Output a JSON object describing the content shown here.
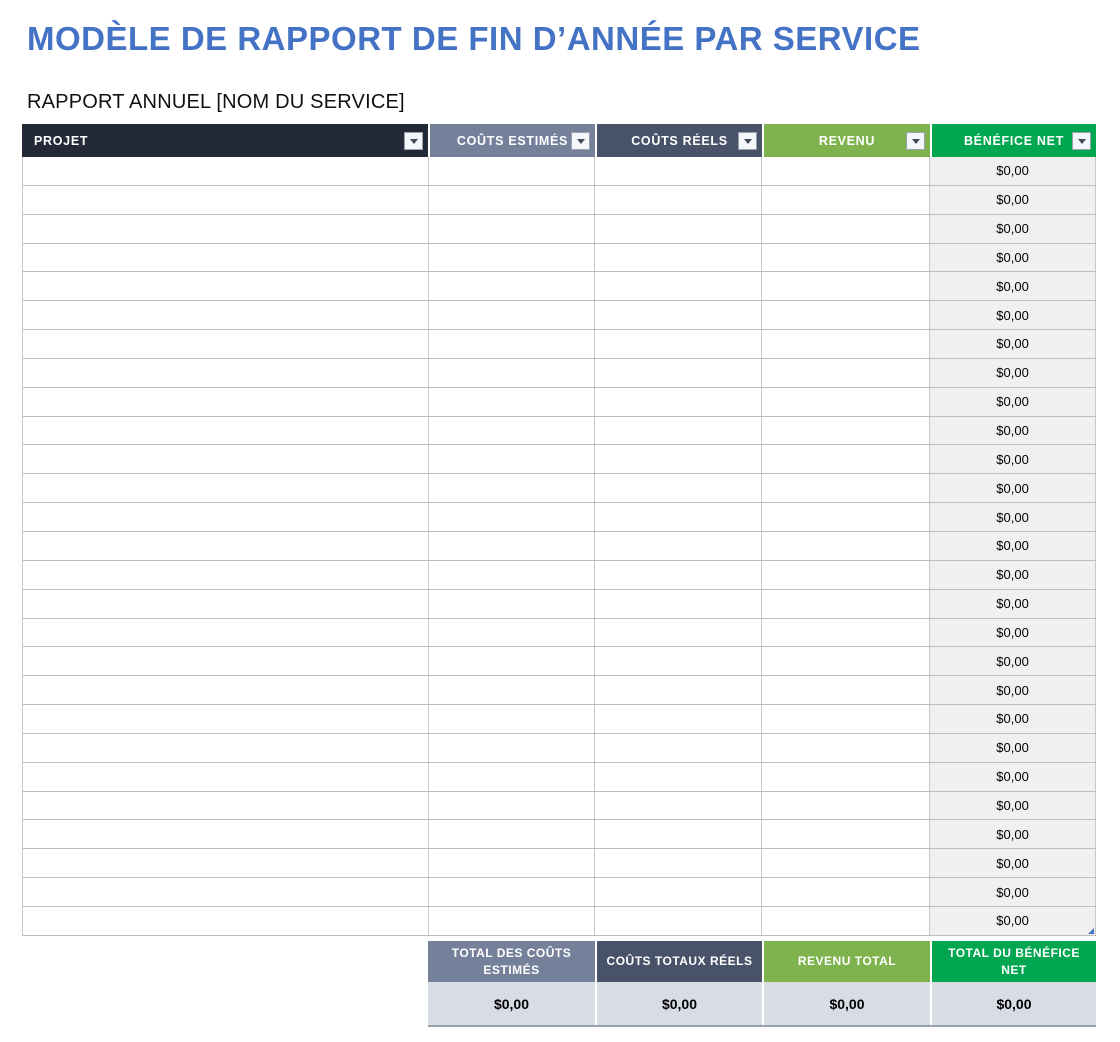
{
  "page": {
    "title": "MODÈLE DE RAPPORT DE FIN D’ANNÉE PAR SERVICE",
    "subtitle": "RAPPORT ANNUEL [NOM DU SERVICE]"
  },
  "colors": {
    "title_blue": "#4472C4",
    "projet_header": "#232936",
    "couts_estimes_header": "#75819A",
    "couts_reels_header": "#485369",
    "revenu_header": "#7FB34E",
    "benefice_net_header": "#00A650",
    "benefit_cell_bg": "#F0F0EE",
    "totals_value_bg": "#D8DCE4",
    "resize_handle": "#4472C4"
  },
  "table": {
    "columns": [
      {
        "key": "projet",
        "label": "PROJET"
      },
      {
        "key": "couts_estimes",
        "label": "COÛTS ESTIMÉS"
      },
      {
        "key": "couts_reels",
        "label": "COÛTS RÉELS"
      },
      {
        "key": "revenu",
        "label": "REVENU"
      },
      {
        "key": "benefice_net",
        "label": "BÉNÉFICE NET"
      }
    ],
    "filter_icon": "chevron-down-icon",
    "rows": [
      {
        "projet": "",
        "couts_estimes": "",
        "couts_reels": "",
        "revenu": "",
        "benefice_net": "$0,00"
      },
      {
        "projet": "",
        "couts_estimes": "",
        "couts_reels": "",
        "revenu": "",
        "benefice_net": "$0,00"
      },
      {
        "projet": "",
        "couts_estimes": "",
        "couts_reels": "",
        "revenu": "",
        "benefice_net": "$0,00"
      },
      {
        "projet": "",
        "couts_estimes": "",
        "couts_reels": "",
        "revenu": "",
        "benefice_net": "$0,00"
      },
      {
        "projet": "",
        "couts_estimes": "",
        "couts_reels": "",
        "revenu": "",
        "benefice_net": "$0,00"
      },
      {
        "projet": "",
        "couts_estimes": "",
        "couts_reels": "",
        "revenu": "",
        "benefice_net": "$0,00"
      },
      {
        "projet": "",
        "couts_estimes": "",
        "couts_reels": "",
        "revenu": "",
        "benefice_net": "$0,00"
      },
      {
        "projet": "",
        "couts_estimes": "",
        "couts_reels": "",
        "revenu": "",
        "benefice_net": "$0,00"
      },
      {
        "projet": "",
        "couts_estimes": "",
        "couts_reels": "",
        "revenu": "",
        "benefice_net": "$0,00"
      },
      {
        "projet": "",
        "couts_estimes": "",
        "couts_reels": "",
        "revenu": "",
        "benefice_net": "$0,00"
      },
      {
        "projet": "",
        "couts_estimes": "",
        "couts_reels": "",
        "revenu": "",
        "benefice_net": "$0,00"
      },
      {
        "projet": "",
        "couts_estimes": "",
        "couts_reels": "",
        "revenu": "",
        "benefice_net": "$0,00"
      },
      {
        "projet": "",
        "couts_estimes": "",
        "couts_reels": "",
        "revenu": "",
        "benefice_net": "$0,00"
      },
      {
        "projet": "",
        "couts_estimes": "",
        "couts_reels": "",
        "revenu": "",
        "benefice_net": "$0,00"
      },
      {
        "projet": "",
        "couts_estimes": "",
        "couts_reels": "",
        "revenu": "",
        "benefice_net": "$0,00"
      },
      {
        "projet": "",
        "couts_estimes": "",
        "couts_reels": "",
        "revenu": "",
        "benefice_net": "$0,00"
      },
      {
        "projet": "",
        "couts_estimes": "",
        "couts_reels": "",
        "revenu": "",
        "benefice_net": "$0,00"
      },
      {
        "projet": "",
        "couts_estimes": "",
        "couts_reels": "",
        "revenu": "",
        "benefice_net": "$0,00"
      },
      {
        "projet": "",
        "couts_estimes": "",
        "couts_reels": "",
        "revenu": "",
        "benefice_net": "$0,00"
      },
      {
        "projet": "",
        "couts_estimes": "",
        "couts_reels": "",
        "revenu": "",
        "benefice_net": "$0,00"
      },
      {
        "projet": "",
        "couts_estimes": "",
        "couts_reels": "",
        "revenu": "",
        "benefice_net": "$0,00"
      },
      {
        "projet": "",
        "couts_estimes": "",
        "couts_reels": "",
        "revenu": "",
        "benefice_net": "$0,00"
      },
      {
        "projet": "",
        "couts_estimes": "",
        "couts_reels": "",
        "revenu": "",
        "benefice_net": "$0,00"
      },
      {
        "projet": "",
        "couts_estimes": "",
        "couts_reels": "",
        "revenu": "",
        "benefice_net": "$0,00"
      },
      {
        "projet": "",
        "couts_estimes": "",
        "couts_reels": "",
        "revenu": "",
        "benefice_net": "$0,00"
      },
      {
        "projet": "",
        "couts_estimes": "",
        "couts_reels": "",
        "revenu": "",
        "benefice_net": "$0,00"
      },
      {
        "projet": "",
        "couts_estimes": "",
        "couts_reels": "",
        "revenu": "",
        "benefice_net": "$0,00"
      }
    ]
  },
  "totals": {
    "headers": [
      "TOTAL DES COÛTS ESTIMÉS",
      "COÛTS TOTAUX RÉELS",
      "REVENU TOTAL",
      "TOTAL DU BÉNÉFICE NET"
    ],
    "values": [
      "$0,00",
      "$0,00",
      "$0,00",
      "$0,00"
    ]
  }
}
